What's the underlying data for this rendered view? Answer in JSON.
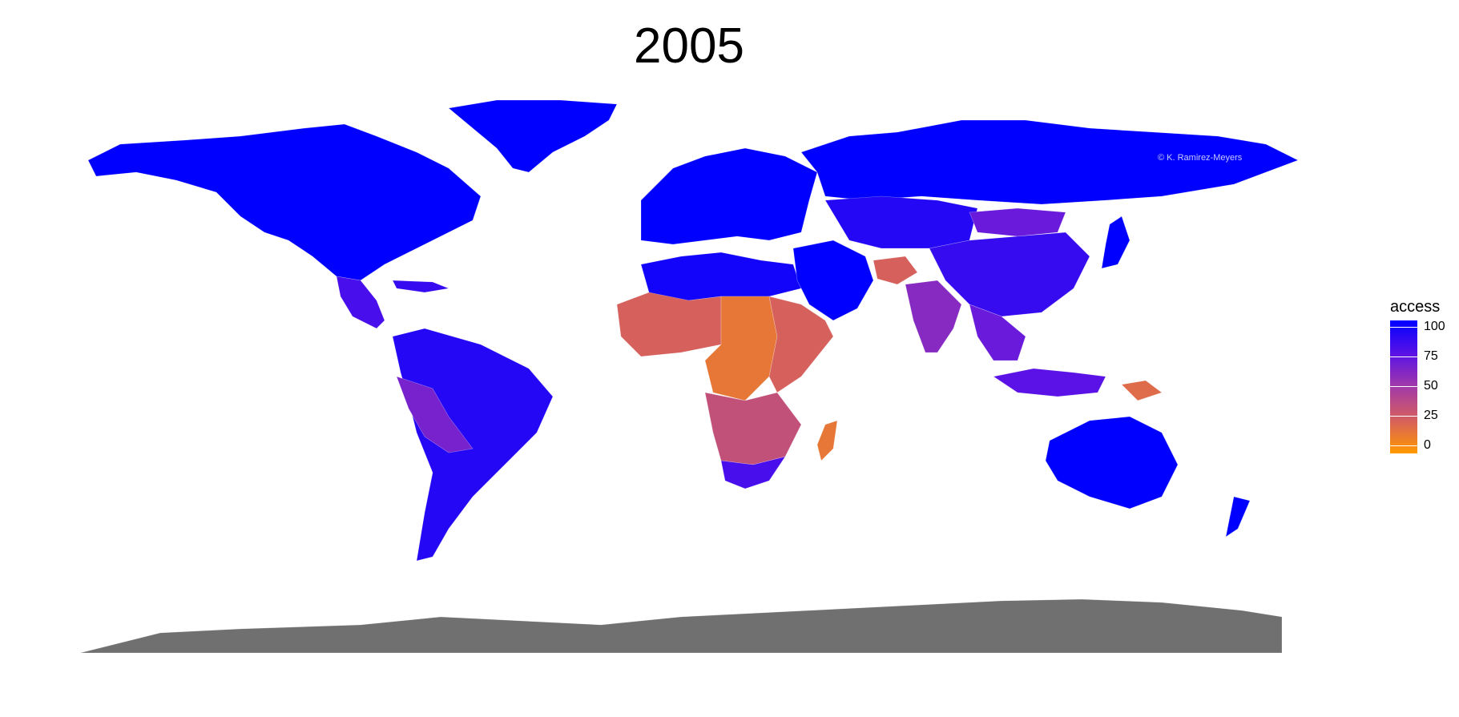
{
  "title": "2005",
  "credit": "© K. Ramirez-Meyers",
  "legend": {
    "title": "access",
    "ticks": [
      "100",
      "75",
      "50",
      "25",
      "0"
    ],
    "scale_range": [
      0,
      100
    ],
    "colors": {
      "high": "#0000ff",
      "mid_high": "#5a12e6",
      "mid": "#a33aa8",
      "mid_low": "#d6605c",
      "low": "#ff9900"
    }
  },
  "colors": {
    "no_data": "#707070",
    "background": "#ffffff"
  },
  "map_data": {
    "variable": "access",
    "year": "2005",
    "regions": [
      {
        "name": "North America",
        "access": 100
      },
      {
        "name": "Greenland",
        "access": 100
      },
      {
        "name": "Central America",
        "access": 80
      },
      {
        "name": "Caribbean",
        "access": 85
      },
      {
        "name": "South America",
        "access": 90
      },
      {
        "name": "Peru / Bolivia",
        "access": 65
      },
      {
        "name": "Europe",
        "access": 100
      },
      {
        "name": "Russia",
        "access": 100
      },
      {
        "name": "North Africa",
        "access": 95
      },
      {
        "name": "West Africa",
        "access": 25
      },
      {
        "name": "Central Africa",
        "access": 15
      },
      {
        "name": "East Africa",
        "access": 25
      },
      {
        "name": "Southern Africa",
        "access": 35
      },
      {
        "name": "South Africa",
        "access": 80
      },
      {
        "name": "Madagascar",
        "access": 15
      },
      {
        "name": "Middle East",
        "access": 100
      },
      {
        "name": "Afghanistan",
        "access": 25
      },
      {
        "name": "Central Asia",
        "access": 90
      },
      {
        "name": "Mongolia",
        "access": 70
      },
      {
        "name": "China",
        "access": 85
      },
      {
        "name": "India",
        "access": 60
      },
      {
        "name": "Southeast Asia",
        "access": 70
      },
      {
        "name": "Indonesia",
        "access": 75
      },
      {
        "name": "Papua New Guinea",
        "access": 20
      },
      {
        "name": "Japan",
        "access": 100
      },
      {
        "name": "Australia",
        "access": 100
      },
      {
        "name": "New Zealand",
        "access": 100
      },
      {
        "name": "Antarctica",
        "access": null
      }
    ]
  }
}
